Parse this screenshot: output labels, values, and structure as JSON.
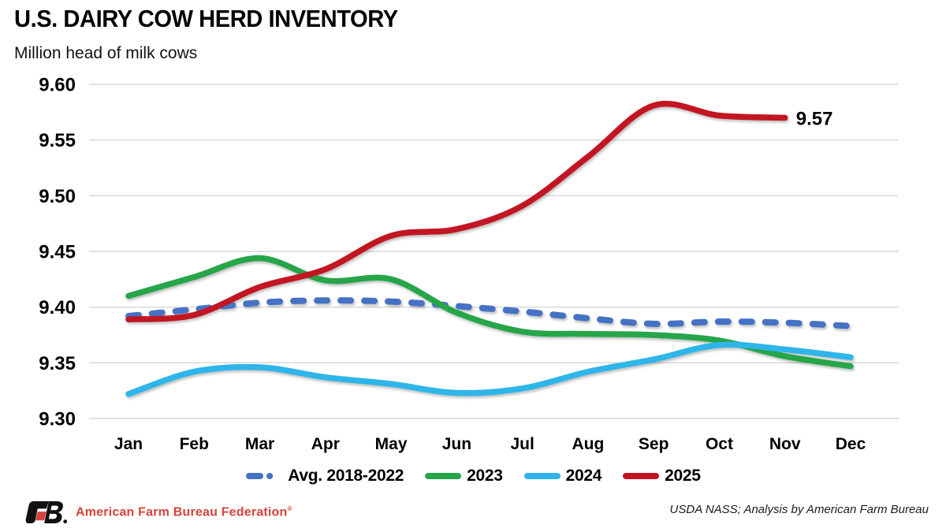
{
  "header": {
    "title": "U.S. DAIRY COW HERD INVENTORY",
    "subtitle": "Million head of milk cows"
  },
  "chart_data": {
    "type": "line",
    "title": "U.S. DAIRY COW HERD INVENTORY",
    "subtitle": "Million head of milk cows",
    "categories": [
      "Jan",
      "Feb",
      "Mar",
      "Apr",
      "May",
      "Jun",
      "Jul",
      "Aug",
      "Sep",
      "Oct",
      "Nov",
      "Dec"
    ],
    "series": [
      {
        "name": "Avg. 2018-2022",
        "style": "dashed",
        "color": "#4472C4",
        "values": [
          9.392,
          9.398,
          9.404,
          9.406,
          9.405,
          9.401,
          9.396,
          9.39,
          9.385,
          9.387,
          9.386,
          9.383
        ]
      },
      {
        "name": "2023",
        "style": "solid",
        "color": "#27A54A",
        "values": [
          9.41,
          9.427,
          9.444,
          9.424,
          9.425,
          9.395,
          9.378,
          9.376,
          9.375,
          9.37,
          9.356,
          9.347
        ]
      },
      {
        "name": "2024",
        "style": "solid",
        "color": "#2FB5E9",
        "values": [
          9.322,
          9.342,
          9.346,
          9.337,
          9.331,
          9.323,
          9.327,
          9.342,
          9.353,
          9.366,
          9.362,
          9.355
        ]
      },
      {
        "name": "2025",
        "style": "solid",
        "color": "#C21320",
        "values": [
          9.389,
          9.393,
          9.418,
          9.434,
          9.464,
          9.47,
          9.491,
          9.535,
          9.581,
          9.572,
          9.57,
          null
        ]
      }
    ],
    "ylim": [
      9.3,
      9.6
    ],
    "yticks": [
      "9.60",
      "9.55",
      "9.50",
      "9.45",
      "9.40",
      "9.35",
      "9.30"
    ],
    "grid": true,
    "legend_position": "bottom",
    "annotation": {
      "text": "9.57",
      "series": "2025",
      "category": "Nov"
    }
  },
  "footer": {
    "org_name": "American Farm Bureau Federation",
    "trademark": "®",
    "source": "USDA NASS; Analysis by American Farm Bureau"
  }
}
